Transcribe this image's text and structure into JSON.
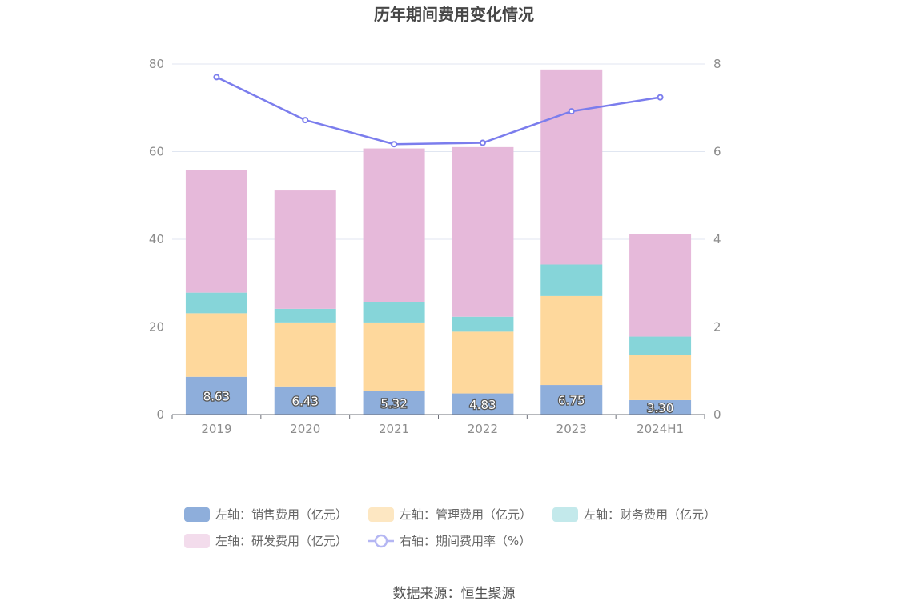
{
  "chart_data": {
    "type": "bar",
    "title": "历年期间费用变化情况",
    "source": "数据来源：恒生聚源",
    "categories": [
      "2019",
      "2020",
      "2021",
      "2022",
      "2023",
      "2024H1"
    ],
    "stacked": true,
    "left_axis": {
      "ylim": [
        0,
        80
      ],
      "ticks": [
        "0",
        "20",
        "40",
        "60",
        "80"
      ]
    },
    "right_axis": {
      "ylim": [
        0,
        8
      ],
      "ticks": [
        "0",
        "2",
        "4",
        "6",
        "8"
      ]
    },
    "grid": true,
    "legend_position": "bottom",
    "series": [
      {
        "name": "左轴：销售费用（亿元）",
        "axis": "left",
        "type": "bar",
        "color": "#8eaedb",
        "values": [
          8.63,
          6.43,
          5.32,
          4.83,
          6.75,
          3.3
        ],
        "labels": [
          "8.63",
          "6.43",
          "5.32",
          "4.83",
          "6.75",
          "3.30"
        ]
      },
      {
        "name": "左轴：管理费用（亿元）",
        "axis": "left",
        "type": "bar",
        "color": "#fed89c",
        "values": [
          14.5,
          14.6,
          15.7,
          14.1,
          20.3,
          10.4
        ]
      },
      {
        "name": "左轴：财务费用（亿元）",
        "axis": "left",
        "type": "bar",
        "color": "#86d5d9",
        "values": [
          4.7,
          3.1,
          4.7,
          3.4,
          7.2,
          4.1
        ]
      },
      {
        "name": "左轴：研发费用（亿元）",
        "axis": "left",
        "type": "bar",
        "color": "#e6b9da",
        "values": [
          28.0,
          27.0,
          35.0,
          38.7,
          44.5,
          23.4
        ]
      },
      {
        "name": "右轴：期间费用率（%）",
        "axis": "right",
        "type": "line",
        "color": "#7b7ded",
        "values": [
          7.7,
          6.72,
          6.17,
          6.2,
          6.92,
          7.24
        ]
      }
    ]
  }
}
